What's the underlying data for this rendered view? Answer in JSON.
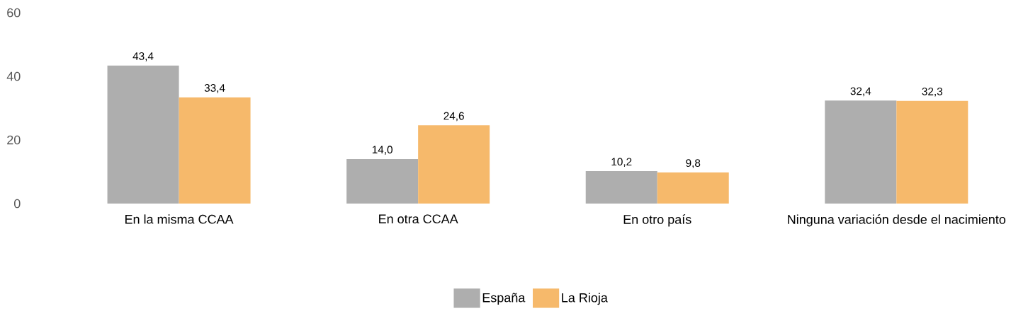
{
  "chart_data": {
    "type": "bar",
    "categories": [
      "En la misma CCAA",
      "En otra CCAA",
      "En otro país",
      "Ninguna variación desde el nacimiento"
    ],
    "series": [
      {
        "name": "España",
        "color": "#aeaeae",
        "values": [
          43.4,
          14.0,
          10.2,
          32.4
        ],
        "value_labels": [
          "43,4",
          "14,0",
          "10,2",
          "32,4"
        ]
      },
      {
        "name": "La Rioja",
        "color": "#f6b96b",
        "values": [
          33.4,
          24.6,
          9.8,
          32.3
        ],
        "value_labels": [
          "33,4",
          "24,6",
          "9,8",
          "32,3"
        ]
      }
    ],
    "ylim": [
      0,
      60
    ],
    "yticks": [
      0,
      20,
      40,
      60
    ],
    "legend": "bottom"
  }
}
